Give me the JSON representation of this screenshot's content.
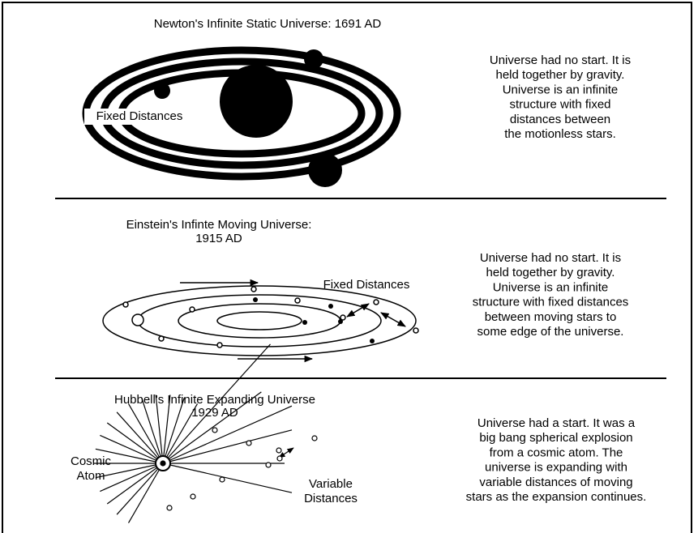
{
  "panels": [
    {
      "title": [
        "Newton's Infinite Static Universe:  1691 AD"
      ],
      "label": [
        "Fixed Distances"
      ],
      "description": [
        "Universe had no start.  It is",
        "held together by gravity.",
        "Universe is an infinite",
        "structure with fixed",
        "distances between",
        "the motionless stars."
      ]
    },
    {
      "title": [
        "Einstein's Infinte Moving Universe:",
        "1915 AD"
      ],
      "label": [
        "Fixed Distances"
      ],
      "description": [
        "Universe had no start.  It is",
        "held together by gravity.",
        "Universe is an infinite",
        "structure with fixed distances",
        "between moving stars to",
        "some edge of the universe."
      ]
    },
    {
      "title": [
        "Hubbell's Infinite Expanding Universe",
        "1929 AD"
      ],
      "label": [
        "Cosmic",
        "Atom"
      ],
      "label2": [
        "Variable",
        "Distances"
      ],
      "description": [
        "Universe had a start.  It was a",
        "big bang spherical explosion",
        "from a cosmic atom.  The",
        "universe is expanding with",
        "variable distances of moving",
        "stars as the expansion continues."
      ]
    }
  ]
}
